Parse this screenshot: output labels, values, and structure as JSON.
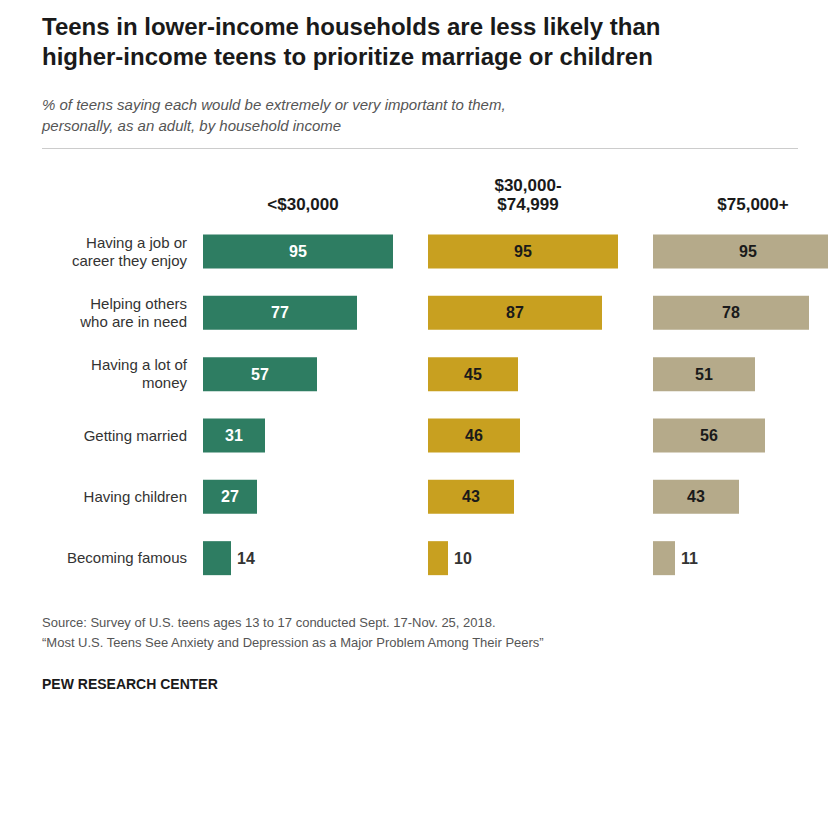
{
  "chart_data": {
    "type": "bar",
    "orientation": "horizontal",
    "title": "Teens in lower-income households are less likely than\nhigher-income teens to prioritize marriage or children",
    "subtitle": "% of teens saying each would be extremely or very important to them,\npersonally, as an adult, by household income",
    "categories": [
      "Having a job or\ncareer they enjoy",
      "Helping others\nwho are in need",
      "Having a lot of\nmoney",
      "Getting married",
      "Having children",
      "Becoming famous"
    ],
    "series": [
      {
        "name": "<$30,000",
        "color": "#2e7d62",
        "values": [
          95,
          77,
          57,
          31,
          27,
          14
        ]
      },
      {
        "name": "$30,000-\n$74,999",
        "color": "#c8a020",
        "values": [
          95,
          87,
          45,
          46,
          43,
          10
        ]
      },
      {
        "name": "$75,000+",
        "color": "#b5aa8a",
        "values": [
          95,
          78,
          51,
          56,
          43,
          11
        ]
      }
    ],
    "xlim": [
      0,
      100
    ],
    "grid": false,
    "data_labels": true,
    "tick_labels": "y",
    "annotations": [
      "Source: Survey of U.S. teens ages 13 to 17 conducted Sept. 17-Nov. 25, 2018.\n“Most U.S. Teens See Anxiety and Depression as a Major Problem Among Their Peers”",
      "PEW RESEARCH CENTER"
    ]
  }
}
